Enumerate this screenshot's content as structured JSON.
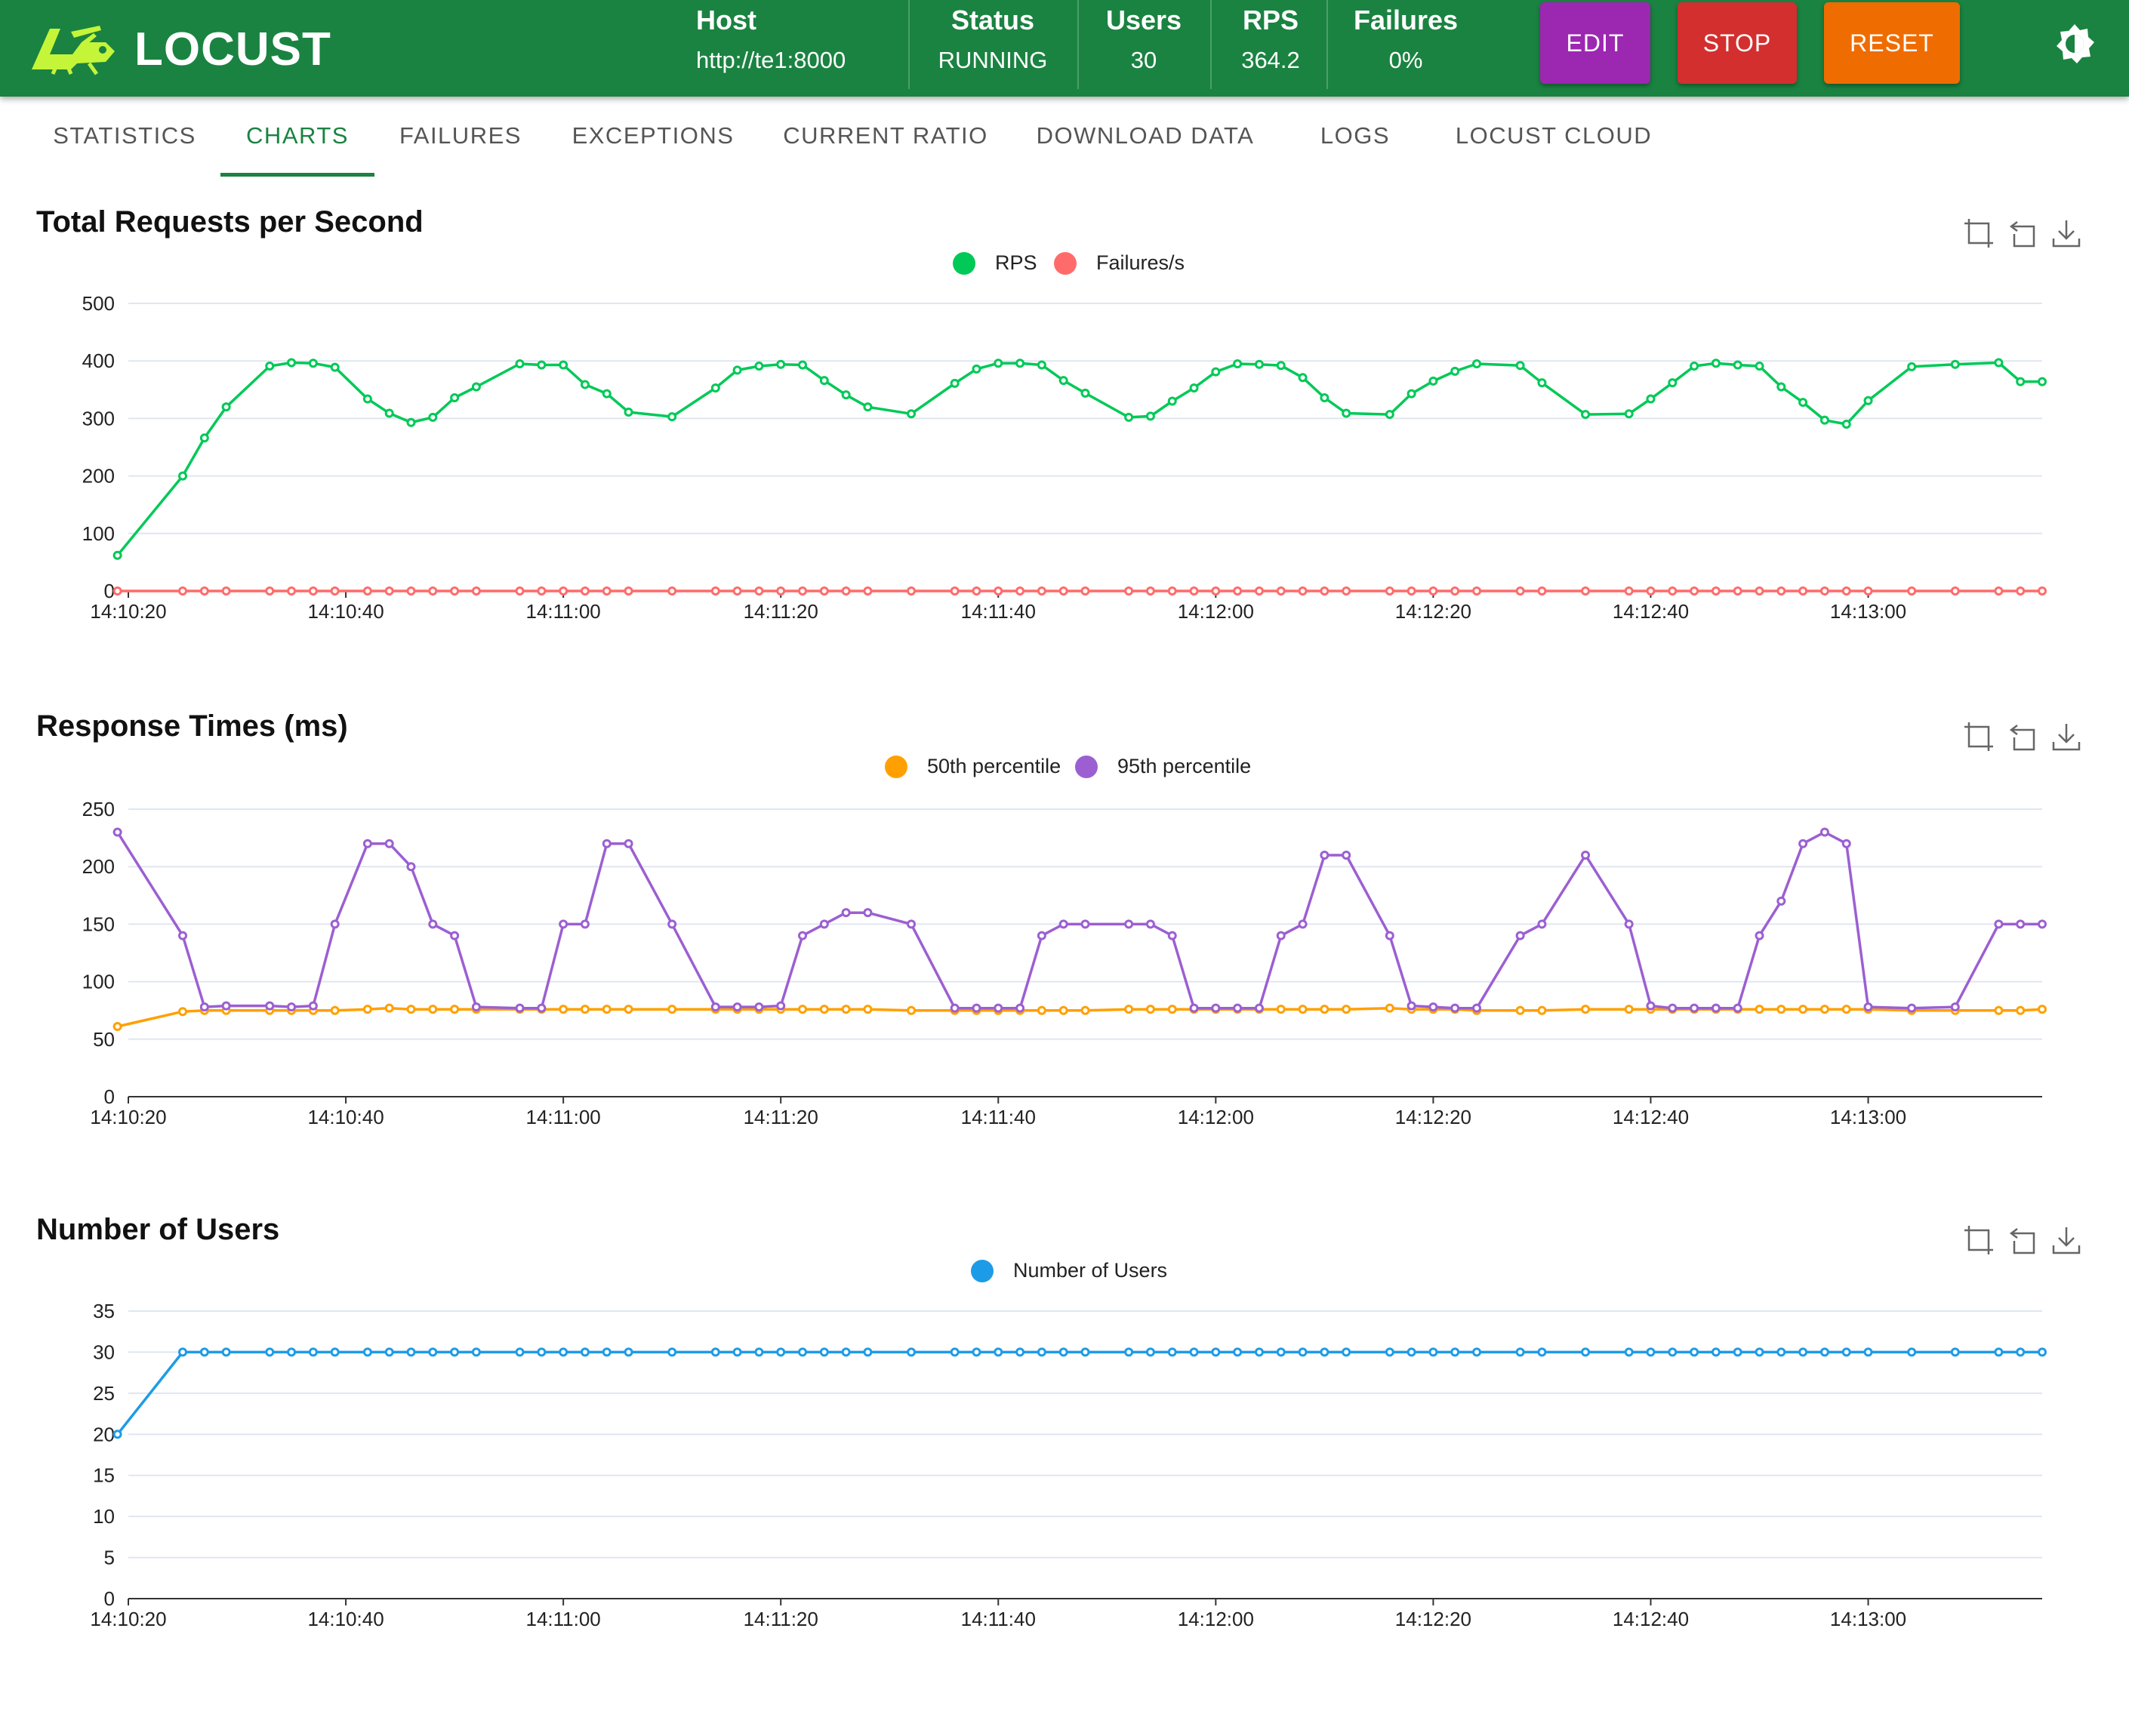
{
  "app": {
    "name": "LOCUST"
  },
  "header": {
    "stats": [
      {
        "label": "Host",
        "value": "http://te1:8000"
      },
      {
        "label": "Status",
        "value": "RUNNING"
      },
      {
        "label": "Users",
        "value": "30"
      },
      {
        "label": "RPS",
        "value": "364.2"
      },
      {
        "label": "Failures",
        "value": "0%"
      }
    ],
    "buttons": {
      "edit": "EDIT",
      "stop": "STOP",
      "reset": "RESET"
    },
    "colors": {
      "bar": "#1a8341",
      "edit": "#9c27b0",
      "stop": "#d32f2f",
      "reset": "#ef6c00"
    }
  },
  "tabs": [
    "STATISTICS",
    "CHARTS",
    "FAILURES",
    "EXCEPTIONS",
    "CURRENT RATIO",
    "DOWNLOAD DATA",
    "LOGS",
    "LOCUST CLOUD"
  ],
  "active_tab": "CHARTS",
  "toolbox_icons": [
    "zoom-icon",
    "zoom-reset-icon",
    "download-icon"
  ],
  "chart_data": [
    {
      "type": "line",
      "title": "Total Requests per Second",
      "xlabel": "",
      "ylabel": "",
      "x_start": "14:10:20",
      "x_end": "14:13:16",
      "x_ticks": [
        "14:10:20",
        "14:10:40",
        "14:11:00",
        "14:11:20",
        "14:11:40",
        "14:12:00",
        "14:12:20",
        "14:12:40",
        "14:13:00"
      ],
      "ylim": [
        0,
        500
      ],
      "y_ticks": [
        0,
        100,
        200,
        300,
        400,
        500
      ],
      "grid": true,
      "legend": "top-center",
      "x": [
        "14:10:19",
        "14:10:25",
        "14:10:27",
        "14:10:29",
        "14:10:33",
        "14:10:35",
        "14:10:37",
        "14:10:39",
        "14:10:42",
        "14:10:44",
        "14:10:46",
        "14:10:48",
        "14:10:50",
        "14:10:52",
        "14:10:56",
        "14:10:58",
        "14:11:00",
        "14:11:02",
        "14:11:04",
        "14:11:06",
        "14:11:10",
        "14:11:14",
        "14:11:16",
        "14:11:18",
        "14:11:20",
        "14:11:22",
        "14:11:24",
        "14:11:26",
        "14:11:28",
        "14:11:32",
        "14:11:36",
        "14:11:38",
        "14:11:40",
        "14:11:42",
        "14:11:44",
        "14:11:46",
        "14:11:48",
        "14:11:52",
        "14:11:54",
        "14:11:56",
        "14:11:58",
        "14:12:00",
        "14:12:02",
        "14:12:04",
        "14:12:06",
        "14:12:08",
        "14:12:10",
        "14:12:12",
        "14:12:16",
        "14:12:18",
        "14:12:20",
        "14:12:22",
        "14:12:24",
        "14:12:28",
        "14:12:30",
        "14:12:34",
        "14:12:38",
        "14:12:40",
        "14:12:42",
        "14:12:44",
        "14:12:46",
        "14:12:48",
        "14:12:50",
        "14:12:52",
        "14:12:54",
        "14:12:56",
        "14:12:58",
        "14:13:00",
        "14:13:04",
        "14:13:08",
        "14:13:12",
        "14:13:14",
        "14:13:16"
      ],
      "series": [
        {
          "name": "RPS",
          "color": "#00c957",
          "values": [
            62,
            200,
            266,
            320,
            391,
            397,
            396,
            389,
            334,
            309,
            293,
            302,
            336,
            355,
            395,
            393,
            393,
            359,
            343,
            311,
            303,
            353,
            384,
            391,
            394,
            393,
            366,
            341,
            320,
            308,
            361,
            386,
            396,
            396,
            393,
            366,
            344,
            302,
            304,
            330,
            353,
            381,
            395,
            394,
            392,
            371,
            336,
            309,
            307,
            343,
            365,
            382,
            395,
            392,
            362,
            307,
            308,
            334,
            362,
            391,
            396,
            393,
            391,
            355,
            328,
            297,
            290,
            331,
            390,
            394,
            397,
            364,
            364
          ]
        },
        {
          "name": "Failures/s",
          "color": "#ff6b6b",
          "values": [
            0,
            0,
            0,
            0,
            0,
            0,
            0,
            0,
            0,
            0,
            0,
            0,
            0,
            0,
            0,
            0,
            0,
            0,
            0,
            0,
            0,
            0,
            0,
            0,
            0,
            0,
            0,
            0,
            0,
            0,
            0,
            0,
            0,
            0,
            0,
            0,
            0,
            0,
            0,
            0,
            0,
            0,
            0,
            0,
            0,
            0,
            0,
            0,
            0,
            0,
            0,
            0,
            0,
            0,
            0,
            0,
            0,
            0,
            0,
            0,
            0,
            0,
            0,
            0,
            0,
            0,
            0,
            0,
            0,
            0,
            0,
            0,
            0
          ]
        }
      ]
    },
    {
      "type": "line",
      "title": "Response Times (ms)",
      "xlabel": "",
      "ylabel": "",
      "x_start": "14:10:20",
      "x_end": "14:13:16",
      "x_ticks": [
        "14:10:20",
        "14:10:40",
        "14:11:00",
        "14:11:20",
        "14:11:40",
        "14:12:00",
        "14:12:20",
        "14:12:40",
        "14:13:00"
      ],
      "ylim": [
        0,
        250
      ],
      "y_ticks": [
        0,
        50,
        100,
        150,
        200,
        250
      ],
      "grid": true,
      "legend": "top-center",
      "x": [
        "14:10:19",
        "14:10:25",
        "14:10:27",
        "14:10:29",
        "14:10:33",
        "14:10:35",
        "14:10:37",
        "14:10:39",
        "14:10:42",
        "14:10:44",
        "14:10:46",
        "14:10:48",
        "14:10:50",
        "14:10:52",
        "14:10:56",
        "14:10:58",
        "14:11:00",
        "14:11:02",
        "14:11:04",
        "14:11:06",
        "14:11:10",
        "14:11:14",
        "14:11:16",
        "14:11:18",
        "14:11:20",
        "14:11:22",
        "14:11:24",
        "14:11:26",
        "14:11:28",
        "14:11:32",
        "14:11:36",
        "14:11:38",
        "14:11:40",
        "14:11:42",
        "14:11:44",
        "14:11:46",
        "14:11:48",
        "14:11:52",
        "14:11:54",
        "14:11:56",
        "14:11:58",
        "14:12:00",
        "14:12:02",
        "14:12:04",
        "14:12:06",
        "14:12:08",
        "14:12:10",
        "14:12:12",
        "14:12:16",
        "14:12:18",
        "14:12:20",
        "14:12:22",
        "14:12:24",
        "14:12:28",
        "14:12:30",
        "14:12:34",
        "14:12:38",
        "14:12:40",
        "14:12:42",
        "14:12:44",
        "14:12:46",
        "14:12:48",
        "14:12:50",
        "14:12:52",
        "14:12:54",
        "14:12:56",
        "14:12:58",
        "14:13:00",
        "14:13:04",
        "14:13:08",
        "14:13:12",
        "14:13:14",
        "14:13:16"
      ],
      "series": [
        {
          "name": "50th percentile",
          "color": "#ffa000",
          "values": [
            61,
            74,
            75,
            75,
            75,
            75,
            75,
            75,
            76,
            77,
            76,
            76,
            76,
            76,
            76,
            76,
            76,
            76,
            76,
            76,
            76,
            76,
            76,
            76,
            76,
            76,
            76,
            76,
            76,
            75,
            75,
            75,
            75,
            75,
            75,
            75,
            75,
            76,
            76,
            76,
            76,
            76,
            76,
            76,
            76,
            76,
            76,
            76,
            77,
            76,
            76,
            76,
            75,
            75,
            75,
            76,
            76,
            76,
            76,
            76,
            76,
            76,
            76,
            76,
            76,
            76,
            76,
            76,
            75,
            75,
            75,
            75,
            76
          ]
        },
        {
          "name": "95th percentile",
          "color": "#9c5fd2",
          "values": [
            230,
            140,
            78,
            79,
            79,
            78,
            79,
            150,
            220,
            220,
            200,
            150,
            140,
            78,
            77,
            77,
            150,
            150,
            220,
            220,
            150,
            78,
            78,
            78,
            79,
            140,
            150,
            160,
            160,
            150,
            77,
            77,
            77,
            77,
            140,
            150,
            150,
            150,
            150,
            140,
            77,
            77,
            77,
            77,
            140,
            150,
            210,
            210,
            140,
            79,
            78,
            77,
            77,
            140,
            150,
            210,
            150,
            79,
            77,
            77,
            77,
            77,
            140,
            170,
            220,
            230,
            220,
            78,
            77,
            78,
            150,
            150,
            150
          ]
        }
      ]
    },
    {
      "type": "line",
      "title": "Number of Users",
      "xlabel": "",
      "ylabel": "",
      "x_start": "14:10:20",
      "x_end": "14:13:16",
      "x_ticks": [
        "14:10:20",
        "14:10:40",
        "14:11:00",
        "14:11:20",
        "14:11:40",
        "14:12:00",
        "14:12:20",
        "14:12:40",
        "14:13:00"
      ],
      "ylim": [
        0,
        35
      ],
      "y_ticks": [
        0,
        5,
        10,
        15,
        20,
        25,
        30,
        35
      ],
      "grid": true,
      "legend": "top-center",
      "x": [
        "14:10:19",
        "14:10:25",
        "14:10:27",
        "14:10:29",
        "14:10:33",
        "14:10:35",
        "14:10:37",
        "14:10:39",
        "14:10:42",
        "14:10:44",
        "14:10:46",
        "14:10:48",
        "14:10:50",
        "14:10:52",
        "14:10:56",
        "14:10:58",
        "14:11:00",
        "14:11:02",
        "14:11:04",
        "14:11:06",
        "14:11:10",
        "14:11:14",
        "14:11:16",
        "14:11:18",
        "14:11:20",
        "14:11:22",
        "14:11:24",
        "14:11:26",
        "14:11:28",
        "14:11:32",
        "14:11:36",
        "14:11:38",
        "14:11:40",
        "14:11:42",
        "14:11:44",
        "14:11:46",
        "14:11:48",
        "14:11:52",
        "14:11:54",
        "14:11:56",
        "14:11:58",
        "14:12:00",
        "14:12:02",
        "14:12:04",
        "14:12:06",
        "14:12:08",
        "14:12:10",
        "14:12:12",
        "14:12:16",
        "14:12:18",
        "14:12:20",
        "14:12:22",
        "14:12:24",
        "14:12:28",
        "14:12:30",
        "14:12:34",
        "14:12:38",
        "14:12:40",
        "14:12:42",
        "14:12:44",
        "14:12:46",
        "14:12:48",
        "14:12:50",
        "14:12:52",
        "14:12:54",
        "14:12:56",
        "14:12:58",
        "14:13:00",
        "14:13:04",
        "14:13:08",
        "14:13:12",
        "14:13:14",
        "14:13:16"
      ],
      "series": [
        {
          "name": "Number of Users",
          "color": "#1e9be6",
          "values": [
            20,
            30,
            30,
            30,
            30,
            30,
            30,
            30,
            30,
            30,
            30,
            30,
            30,
            30,
            30,
            30,
            30,
            30,
            30,
            30,
            30,
            30,
            30,
            30,
            30,
            30,
            30,
            30,
            30,
            30,
            30,
            30,
            30,
            30,
            30,
            30,
            30,
            30,
            30,
            30,
            30,
            30,
            30,
            30,
            30,
            30,
            30,
            30,
            30,
            30,
            30,
            30,
            30,
            30,
            30,
            30,
            30,
            30,
            30,
            30,
            30,
            30,
            30,
            30,
            30,
            30,
            30,
            30,
            30,
            30,
            30,
            30,
            30
          ]
        }
      ]
    }
  ]
}
